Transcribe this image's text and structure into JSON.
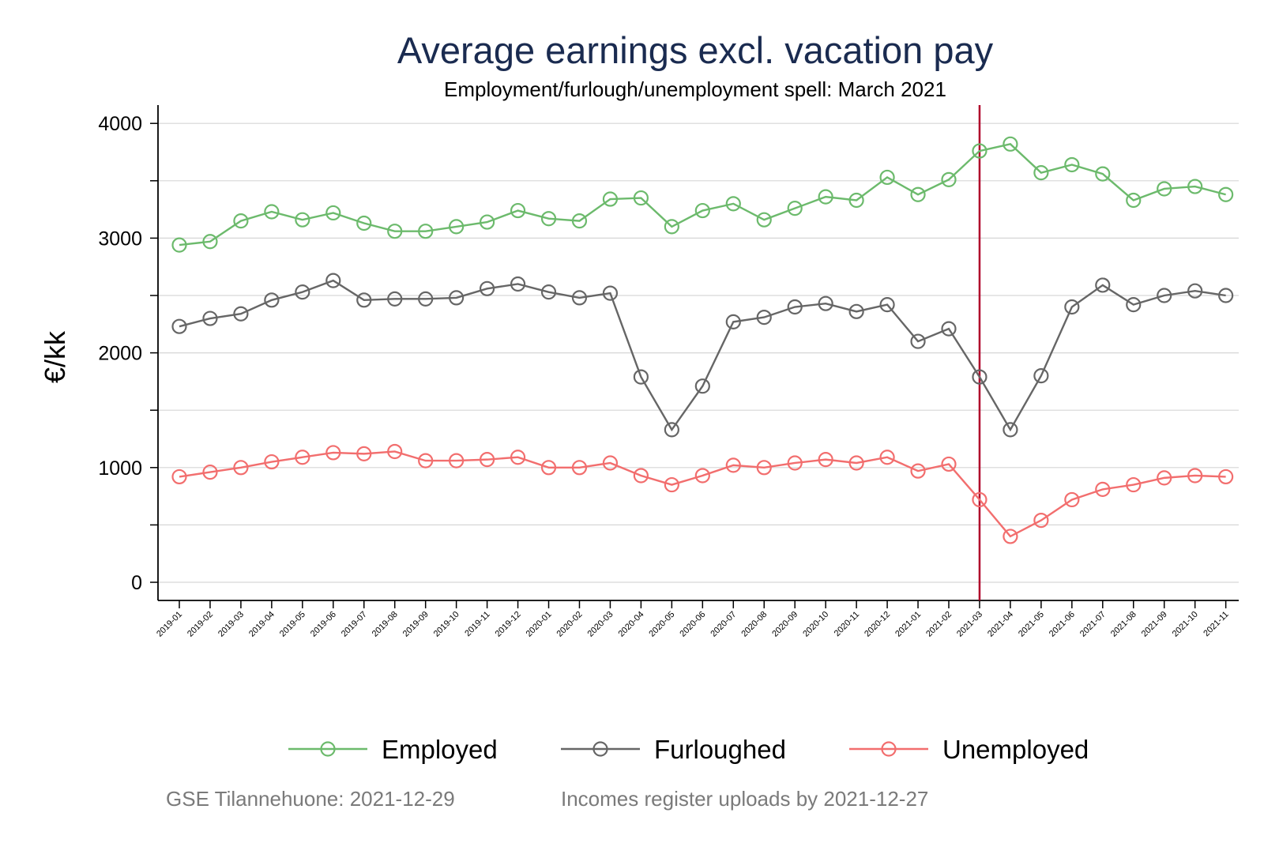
{
  "chart_data": {
    "type": "line",
    "title": "Average earnings excl. vacation pay",
    "subtitle": "Employment/furlough/unemployment spell: March 2021",
    "ylabel": "€/kk",
    "xlabel": "",
    "ylim": [
      -150,
      4200
    ],
    "yticks": [
      0,
      1000,
      2000,
      3000,
      4000
    ],
    "grid": true,
    "legend_position": "bottom",
    "reference_line": {
      "x": "2021-03",
      "color": "#b0002a"
    },
    "categories": [
      "2019-01",
      "2019-02",
      "2019-03",
      "2019-04",
      "2019-05",
      "2019-06",
      "2019-07",
      "2019-08",
      "2019-09",
      "2019-10",
      "2019-11",
      "2019-12",
      "2020-01",
      "2020-02",
      "2020-03",
      "2020-04",
      "2020-05",
      "2020-06",
      "2020-07",
      "2020-08",
      "2020-09",
      "2020-10",
      "2020-11",
      "2020-12",
      "2021-01",
      "2021-02",
      "2021-03",
      "2021-04",
      "2021-05",
      "2021-06",
      "2021-07",
      "2021-08",
      "2021-09",
      "2021-10",
      "2021-11"
    ],
    "series": [
      {
        "name": "Employed",
        "color": "#6cba6c",
        "values": [
          2940,
          2970,
          3150,
          3230,
          3160,
          3220,
          3130,
          3060,
          3060,
          3100,
          3140,
          3240,
          3170,
          3150,
          3340,
          3350,
          3100,
          3240,
          3300,
          3160,
          3260,
          3360,
          3330,
          3530,
          3380,
          3510,
          3760,
          3820,
          3570,
          3640,
          3560,
          3330,
          3430,
          3450,
          3380
        ]
      },
      {
        "name": "Furloughed",
        "color": "#666666",
        "values": [
          2230,
          2300,
          2340,
          2460,
          2530,
          2630,
          2460,
          2470,
          2470,
          2480,
          2560,
          2600,
          2530,
          2480,
          2520,
          1790,
          1330,
          1710,
          2270,
          2310,
          2400,
          2430,
          2360,
          2420,
          2100,
          2210,
          1790,
          1330,
          1800,
          2400,
          2590,
          2420,
          2500,
          2540,
          2500
        ]
      },
      {
        "name": "Unemployed",
        "color": "#f26e6e",
        "values": [
          920,
          960,
          1000,
          1050,
          1090,
          1130,
          1120,
          1140,
          1060,
          1060,
          1070,
          1090,
          1000,
          1000,
          1040,
          930,
          850,
          930,
          1020,
          1000,
          1040,
          1070,
          1040,
          1090,
          970,
          1030,
          720,
          400,
          540,
          720,
          810,
          850,
          910,
          930,
          920
        ]
      }
    ]
  },
  "footnote": {
    "left": "GSE Tilannehuone: 2021-12-29",
    "right": "Incomes register uploads by 2021-12-27"
  }
}
